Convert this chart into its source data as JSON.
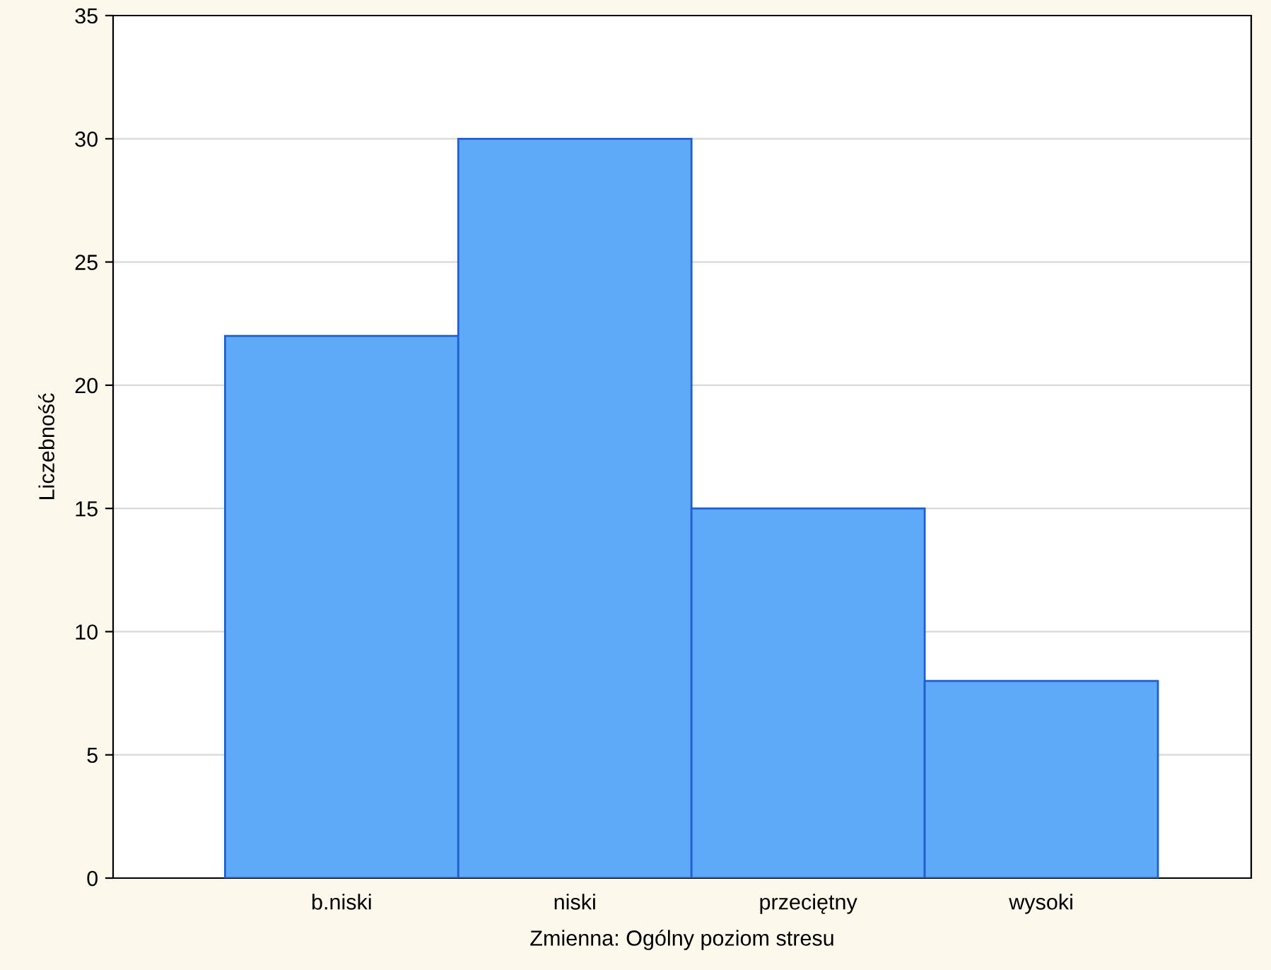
{
  "chart_data": {
    "type": "bar",
    "xlabel": "Zmienna: Ogólny poziom stresu",
    "ylabel": "Liczebność",
    "categories": [
      "b.niski",
      "niski",
      "przeciętny",
      "wysoki"
    ],
    "values": [
      22,
      30,
      15,
      8
    ],
    "color": "#5fa9f9",
    "ylim": [
      0,
      35
    ],
    "yticks": [
      0,
      5,
      10,
      15,
      20,
      25,
      30,
      35
    ],
    "grid": "y"
  }
}
